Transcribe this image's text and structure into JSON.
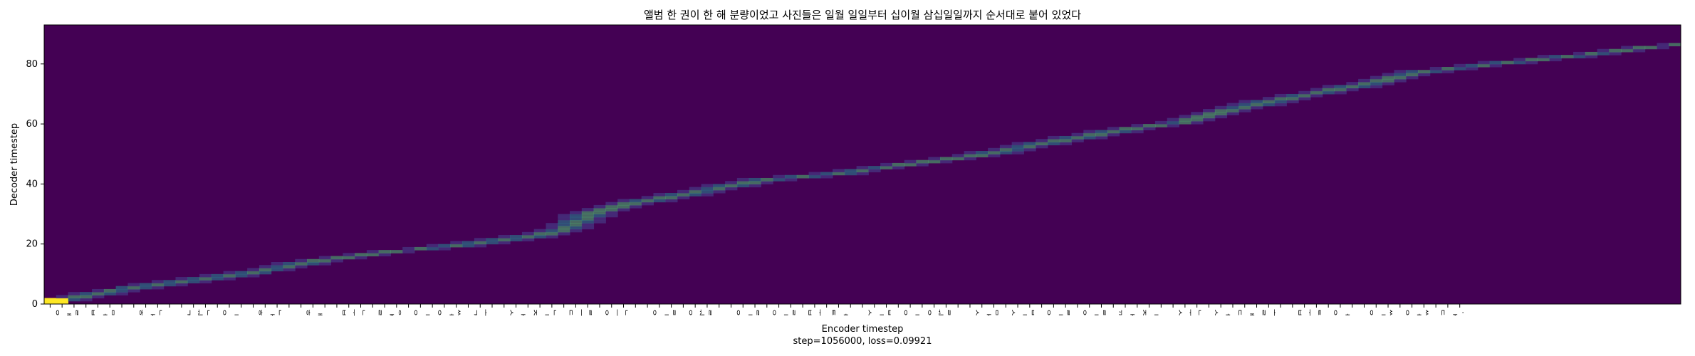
{
  "chart_data": {
    "type": "heatmap",
    "title": "앨범 한 권이 한 해 분량이었고 사진들은 일월 일일부터 십이월 삼십일일까지 순서대로 붙어 있었다",
    "xlabel": "Encoder timestep",
    "subtitle": "step=1056000, loss=0.09921",
    "ylabel": "Decoder timestep",
    "ylim": [
      0,
      93
    ],
    "xlim": [
      0,
      137
    ],
    "yticks": [
      0,
      20,
      40,
      60,
      80
    ],
    "grid": false,
    "colormap": "viridis",
    "colors": {
      "background": "#440154",
      "low": "#46327e",
      "mid": "#277f8e",
      "high": "#4ac16d",
      "peak": "#fde725"
    },
    "x_tick_labels": [
      "ᄋ",
      "ᅢ",
      "ᆯ",
      "ᄇ",
      "ᅥ",
      "ᆷ",
      "",
      "ᄒ",
      "ᅡ",
      "ᆫ",
      "",
      "ᄀ",
      "ᅯ",
      "ᆫ",
      "ᄋ",
      "ᅵ",
      "",
      "ᄒ",
      "ᅡ",
      "ᆫ",
      "",
      "ᄒ",
      "ᅢ",
      "",
      "ᄇ",
      "ᅮ",
      "ᆫ",
      "ᄅ",
      "ᅣ",
      "ᆼ",
      "ᄋ",
      "ᅵ",
      "ᄋ",
      "ᅥ",
      "ᆻ",
      "ᄀ",
      "ᅩ",
      "",
      "ᄉ",
      "ᅡ",
      "ᄌ",
      "ᅵ",
      "ᆫ",
      "ᄃ",
      "ᅳ",
      "ᆯ",
      "ᄋ",
      "ᅳ",
      "ᆫ",
      "",
      "ᄋ",
      "ᅵ",
      "ᆯ",
      "ᄋ",
      "ᅯ",
      "ᆯ",
      "",
      "ᄋ",
      "ᅵ",
      "ᆯ",
      "ᄋ",
      "ᅵ",
      "ᆯ",
      "ᄇ",
      "ᅮ",
      "ᄐ",
      "ᅥ",
      "",
      "ᄉ",
      "ᅵ",
      "ᆸ",
      "ᄋ",
      "ᅵ",
      "ᄋ",
      "ᅯ",
      "ᆯ",
      "",
      "ᄉ",
      "ᅡ",
      "ᆷ",
      "ᄉ",
      "ᅵ",
      "ᆸ",
      "ᄋ",
      "ᅵ",
      "ᆯ",
      "ᄋ",
      "ᅵ",
      "ᆯ",
      "ᄁ",
      "ᅡ",
      "ᄌ",
      "ᅵ",
      "",
      "ᄉ",
      "ᅮ",
      "ᆫ",
      "ᄉ",
      "ᅥ",
      "ᄃ",
      "ᅢ",
      "ᄅ",
      "ᅩ",
      "",
      "ᄇ",
      "ᅮ",
      "ᇀ",
      "ᄋ",
      "ᅥ",
      "",
      "ᄋ",
      "ᅵ",
      "ᆻ",
      "ᄋ",
      "ᅥ",
      "ᆻ",
      "ᄃ",
      "ᅡ",
      "."
    ],
    "alignment": [
      [
        0,
        0
      ],
      [
        2,
        1
      ],
      [
        8,
        4
      ],
      [
        16,
        7
      ],
      [
        24,
        10
      ],
      [
        32,
        14
      ],
      [
        40,
        17
      ],
      [
        48,
        19
      ],
      [
        56,
        22
      ],
      [
        60,
        24
      ],
      [
        64,
        30
      ],
      [
        68,
        33
      ],
      [
        76,
        37
      ],
      [
        84,
        41
      ],
      [
        92,
        43
      ],
      [
        100,
        46
      ],
      [
        108,
        49
      ],
      [
        114,
        52
      ],
      [
        120,
        55
      ],
      [
        126,
        58
      ],
      [
        132,
        60
      ],
      [
        136,
        63
      ],
      [
        142,
        67
      ],
      [
        152,
        72
      ],
      [
        160,
        77
      ],
      [
        170,
        80
      ],
      [
        180,
        83
      ],
      [
        186,
        85
      ],
      [
        190,
        86
      ]
    ],
    "alignment_x_scale": 0.7211
  }
}
